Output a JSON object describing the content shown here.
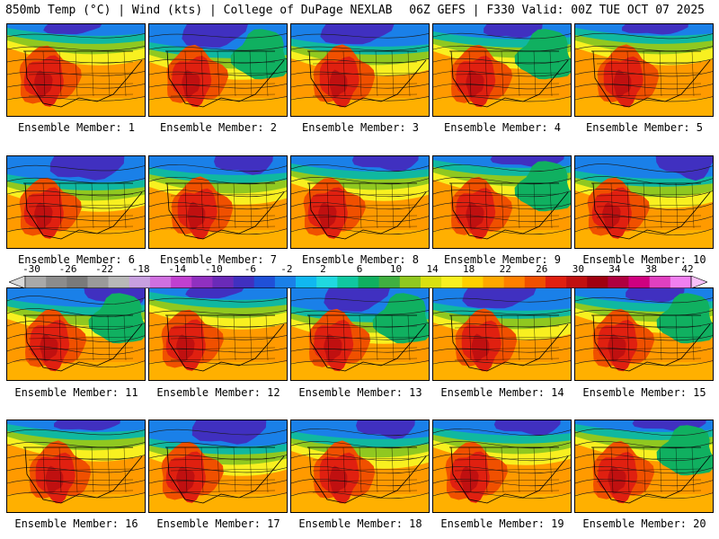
{
  "header": {
    "left": "850mb Temp (°C) | Wind (kts) | College of DuPage NEXLAB",
    "right": "06Z GEFS | F330 Valid: 00Z TUE OCT 07 2025"
  },
  "panels": [
    {
      "label": "Ensemble Member: 1"
    },
    {
      "label": "Ensemble Member: 2"
    },
    {
      "label": "Ensemble Member: 3"
    },
    {
      "label": "Ensemble Member: 4"
    },
    {
      "label": "Ensemble Member: 5"
    },
    {
      "label": "Ensemble Member: 6"
    },
    {
      "label": "Ensemble Member: 7"
    },
    {
      "label": "Ensemble Member: 8"
    },
    {
      "label": "Ensemble Member: 9"
    },
    {
      "label": "Ensemble Member: 10"
    },
    {
      "label": "Ensemble Member: 11"
    },
    {
      "label": "Ensemble Member: 12"
    },
    {
      "label": "Ensemble Member: 13"
    },
    {
      "label": "Ensemble Member: 14"
    },
    {
      "label": "Ensemble Member: 15"
    },
    {
      "label": "Ensemble Member: 16"
    },
    {
      "label": "Ensemble Member: 17"
    },
    {
      "label": "Ensemble Member: 18"
    },
    {
      "label": "Ensemble Member: 19"
    },
    {
      "label": "Ensemble Member: 20"
    }
  ],
  "colorbar": {
    "ticks": [
      "-30",
      "-26",
      "-22",
      "-18",
      "-14",
      "-10",
      "-6",
      "-2",
      "2",
      "6",
      "10",
      "14",
      "18",
      "22",
      "26",
      "30",
      "34",
      "38",
      "42"
    ],
    "colors": [
      "#d9d9d9",
      "#a9a9a9",
      "#8c8c8c",
      "#7a7a7a",
      "#9a9a9a",
      "#b8b8b8",
      "#c8a0e0",
      "#d070e0",
      "#c040d0",
      "#9030c0",
      "#6a2ab8",
      "#4030c0",
      "#2050d8",
      "#1a80e8",
      "#10b8f0",
      "#20d8e0",
      "#10c8a0",
      "#10b060",
      "#40b040",
      "#90c820",
      "#d8e010",
      "#f8f020",
      "#ffd000",
      "#ffa800",
      "#ff8000",
      "#f05000",
      "#e02010",
      "#c01010",
      "#a00010",
      "#b00040",
      "#d00080",
      "#e040c0",
      "#f080f0",
      "#f8c0f8"
    ]
  }
}
